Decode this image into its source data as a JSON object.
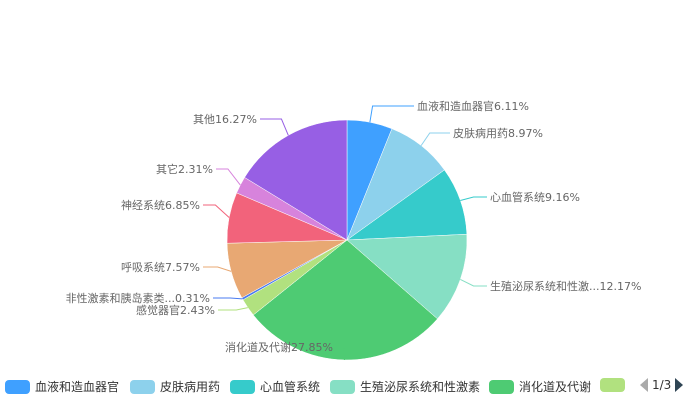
{
  "chart_data": {
    "type": "pie",
    "start_angle": "top, clockwise",
    "slices": [
      {
        "name": "血液和造血器官",
        "label": "血液和造血器官6.11%",
        "value": 6.11,
        "color": "#3fa0ff"
      },
      {
        "name": "皮肤病用药",
        "label": "皮肤病用药8.97%",
        "value": 8.97,
        "color": "#8dd1ec"
      },
      {
        "name": "心血管系统",
        "label": "心血管系统9.16%",
        "value": 9.16,
        "color": "#36cbcb"
      },
      {
        "name": "生殖泌尿系统和性激素",
        "label": "生殖泌尿系统和性激...12.17%",
        "value": 12.17,
        "color": "#86dfc4"
      },
      {
        "name": "消化道及代谢",
        "label": "消化道及代谢27.85%",
        "value": 27.85,
        "color": "#4ecb73"
      },
      {
        "name": "感觉器官",
        "label": "感觉器官2.43%",
        "value": 2.43,
        "color": "#b1e17f"
      },
      {
        "name": "非性激素和胰岛素类...",
        "label": "非性激素和胰岛素类...0.31%",
        "value": 0.31,
        "color": "#4a7bf0"
      },
      {
        "name": "呼吸系统",
        "label": "呼吸系统7.57%",
        "value": 7.57,
        "color": "#e8a873"
      },
      {
        "name": "神经系统",
        "label": "神经系统6.85%",
        "value": 6.85,
        "color": "#f2637b"
      },
      {
        "name": "其它",
        "label": "其它2.31%",
        "value": 2.31,
        "color": "#d783dc"
      },
      {
        "name": "其他",
        "label": "其他16.27%",
        "value": 16.27,
        "color": "#975fe4"
      }
    ],
    "legend": {
      "position": "bottom",
      "visible_items": [
        "血液和造血器官",
        "皮肤病用药",
        "心血管系统",
        "生殖泌尿系统和性激素",
        "消化道及代谢",
        ""
      ],
      "page": "1/3"
    }
  }
}
